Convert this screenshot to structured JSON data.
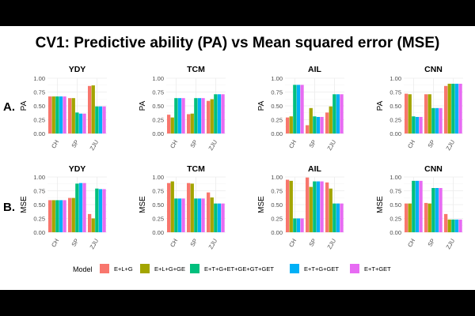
{
  "title": "CV1: Predictive ability (PA) vs Mean squared error (MSE)",
  "colors": {
    "E+L+G": "#F8766D",
    "E+L+G+GE": "#A3A500",
    "E+T+G+ET+GE+GT+GET": "#00BF7D",
    "E+T+G+GET": "#00B0F6",
    "E+T+GET": "#E76BF3"
  },
  "chart_data": {
    "type": "bar",
    "legend_title": "Model",
    "legend_position": "bottom",
    "models": [
      "E+L+G",
      "E+L+G+GE",
      "E+T+G+ET+GE+GT+GET",
      "E+T+G+GET",
      "E+T+GET"
    ],
    "categories": [
      "CH",
      "SP",
      "ZJU"
    ],
    "rows": [
      {
        "label": "A.",
        "ylabel": "PA",
        "ylim": [
          0,
          1
        ],
        "yticks": [
          "0.00",
          "0.25",
          "0.50",
          "0.75",
          "1.00"
        ],
        "panels": [
          {
            "title": "YDY",
            "values": [
              [
                0.67,
                0.67,
                0.67,
                0.67,
                0.67
              ],
              [
                0.64,
                0.64,
                0.38,
                0.36,
                0.36
              ],
              [
                0.86,
                0.87,
                0.49,
                0.49,
                0.49
              ]
            ]
          },
          {
            "title": "TCM",
            "values": [
              [
                0.34,
                0.29,
                0.64,
                0.64,
                0.64
              ],
              [
                0.35,
                0.36,
                0.64,
                0.64,
                0.64
              ],
              [
                0.59,
                0.62,
                0.71,
                0.71,
                0.71
              ]
            ]
          },
          {
            "title": "AIL",
            "values": [
              [
                0.29,
                0.31,
                0.88,
                0.88,
                0.88
              ],
              [
                0.15,
                0.46,
                0.31,
                0.3,
                0.3
              ],
              [
                0.38,
                0.49,
                0.71,
                0.71,
                0.71
              ]
            ]
          },
          {
            "title": "CNN",
            "values": [
              [
                0.72,
                0.71,
                0.31,
                0.3,
                0.3
              ],
              [
                0.71,
                0.71,
                0.46,
                0.46,
                0.46
              ],
              [
                0.86,
                0.9,
                0.9,
                0.9,
                0.9
              ]
            ]
          }
        ]
      },
      {
        "label": "B.",
        "ylabel": "MSE",
        "ylim": [
          0,
          1
        ],
        "yticks": [
          "0.00",
          "0.25",
          "0.50",
          "0.75",
          "1.00"
        ],
        "panels": [
          {
            "title": "YDY",
            "values": [
              [
                0.58,
                0.58,
                0.58,
                0.58,
                0.58
              ],
              [
                0.62,
                0.62,
                0.88,
                0.89,
                0.89
              ],
              [
                0.33,
                0.25,
                0.79,
                0.78,
                0.78
              ]
            ]
          },
          {
            "title": "TCM",
            "values": [
              [
                0.89,
                0.92,
                0.61,
                0.61,
                0.61
              ],
              [
                0.89,
                0.88,
                0.61,
                0.61,
                0.61
              ],
              [
                0.72,
                0.63,
                0.52,
                0.52,
                0.52
              ]
            ]
          },
          {
            "title": "AIL",
            "values": [
              [
                0.95,
                0.93,
                0.25,
                0.25,
                0.25
              ],
              [
                0.99,
                0.82,
                0.92,
                0.92,
                0.92
              ],
              [
                0.9,
                0.79,
                0.52,
                0.52,
                0.52
              ]
            ]
          },
          {
            "title": "CNN",
            "values": [
              [
                0.52,
                0.52,
                0.93,
                0.93,
                0.93
              ],
              [
                0.53,
                0.52,
                0.8,
                0.8,
                0.8
              ],
              [
                0.33,
                0.23,
                0.23,
                0.23,
                0.23
              ]
            ]
          }
        ]
      }
    ]
  }
}
